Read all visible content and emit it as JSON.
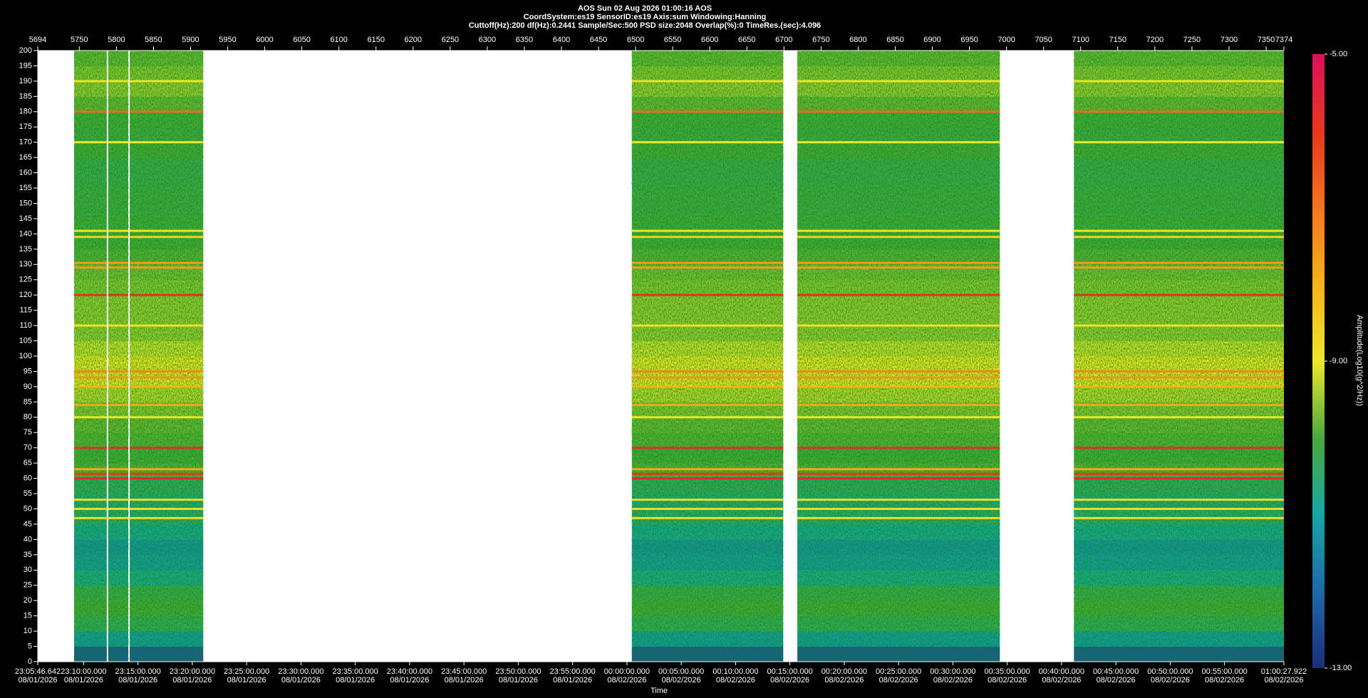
{
  "chart_data": {
    "type": "spectrogram",
    "title": "AOS  Sun 02 Aug 2026 01:00:16  AOS",
    "subtitle": "CoordSystem:es19   SensorID:es19   Axis:sum   Windowing:Hanning",
    "info": "Cuttoff(Hz):200      df(Hz):0.2441      Sample/Sec:500      PSD size:2048      Overlap(%):0      TimeRes.(sec):4.096",
    "x_label": "Time",
    "colorbar_label": "Amplitude(Log10(g^2/Hz))",
    "xlim": [
      5694,
      7374
    ],
    "xticks": [
      5694,
      5750,
      5800,
      5850,
      5900,
      5950,
      6000,
      6050,
      6100,
      6150,
      6200,
      6250,
      6300,
      6350,
      6400,
      6450,
      6500,
      6550,
      6600,
      6650,
      6700,
      6750,
      6800,
      6850,
      6900,
      6950,
      7000,
      7050,
      7100,
      7150,
      7200,
      7250,
      7300,
      7350,
      7374
    ],
    "ylim": [
      0,
      200
    ],
    "yticks": [
      0,
      5,
      10,
      15,
      20,
      25,
      30,
      35,
      40,
      45,
      50,
      55,
      60,
      65,
      70,
      75,
      80,
      85,
      90,
      95,
      100,
      105,
      110,
      115,
      120,
      125,
      130,
      135,
      140,
      145,
      150,
      155,
      160,
      165,
      170,
      175,
      180,
      185,
      190,
      195,
      200
    ],
    "time_ticks": [
      {
        "value": 5694,
        "label": "23:05:46.642",
        "date": "08/01/2026"
      },
      {
        "value": 5755.86,
        "label": "23:10:00.000",
        "date": "08/01/2026"
      },
      {
        "value": 5829.1,
        "label": "23:15:00.000",
        "date": "08/01/2026"
      },
      {
        "value": 5902.34,
        "label": "23:20:00.000",
        "date": "08/01/2026"
      },
      {
        "value": 5975.58,
        "label": "23:25:00.000",
        "date": "08/01/2026"
      },
      {
        "value": 6048.83,
        "label": "23:30:00.000",
        "date": "08/01/2026"
      },
      {
        "value": 6122.07,
        "label": "23:35:00.000",
        "date": "08/01/2026"
      },
      {
        "value": 6195.31,
        "label": "23:40:00.000",
        "date": "08/01/2026"
      },
      {
        "value": 6268.55,
        "label": "23:45:00.000",
        "date": "08/01/2026"
      },
      {
        "value": 6341.8,
        "label": "23:50:00.000",
        "date": "08/01/2026"
      },
      {
        "value": 6415.04,
        "label": "23:55:00.000",
        "date": "08/01/2026"
      },
      {
        "value": 6488.28,
        "label": "00:00:00.000",
        "date": "08/02/2026"
      },
      {
        "value": 6561.52,
        "label": "00:05:00.000",
        "date": "08/02/2026"
      },
      {
        "value": 6634.77,
        "label": "00:10:00.000",
        "date": "08/02/2026"
      },
      {
        "value": 6708.01,
        "label": "00:15:00.000",
        "date": "08/02/2026"
      },
      {
        "value": 6781.25,
        "label": "00:20:00.000",
        "date": "08/02/2026"
      },
      {
        "value": 6854.49,
        "label": "00:25:00.000",
        "date": "08/02/2026"
      },
      {
        "value": 6927.73,
        "label": "00:30:00.000",
        "date": "08/02/2026"
      },
      {
        "value": 7000.98,
        "label": "00:35:00.000",
        "date": "08/02/2026"
      },
      {
        "value": 7074.22,
        "label": "00:40:00.000",
        "date": "08/02/2026"
      },
      {
        "value": 7147.46,
        "label": "00:45:00.000",
        "date": "08/02/2026"
      },
      {
        "value": 7220.7,
        "label": "00:50:00.000",
        "date": "08/02/2026"
      },
      {
        "value": 7293.95,
        "label": "00:55:00.000",
        "date": "08/02/2026"
      },
      {
        "value": 7374,
        "label": "01:00:27.922",
        "date": "08/02/2026"
      }
    ],
    "clim": [
      -13,
      -5
    ],
    "cticks": [
      {
        "value": -5,
        "label": "-5.00"
      },
      {
        "value": -9,
        "label": "-9.00"
      },
      {
        "value": -13,
        "label": "-13.00"
      }
    ],
    "colorscale": [
      "#1c2f7a",
      "#1d69a8",
      "#18a5a5",
      "#4aa93e",
      "#ece72c",
      "#f7b21a",
      "#f3751f",
      "#e8361e",
      "#dc0f5c"
    ],
    "segments": [
      [
        5743,
        5787
      ],
      [
        5789,
        5816
      ],
      [
        5818,
        5917
      ],
      [
        6495,
        6699
      ],
      [
        6718,
        6991
      ],
      [
        7091,
        7374
      ]
    ],
    "band_edges": [
      0,
      5,
      10,
      15,
      20,
      25,
      30,
      35,
      40,
      45,
      50,
      55,
      60,
      65,
      70,
      75,
      80,
      85,
      90,
      95,
      100,
      105,
      110,
      115,
      120,
      125,
      130,
      135,
      140,
      145,
      150,
      155,
      160,
      165,
      170,
      175,
      180,
      185,
      190,
      195,
      200
    ],
    "band_levels": [
      -12.3,
      -11.2,
      -10.3,
      -10.0,
      -10.2,
      -10.8,
      -11.2,
      -11.3,
      -10.9,
      -10.5,
      -10.6,
      -10.4,
      -9.9,
      -10.0,
      -9.9,
      -9.8,
      -9.6,
      -9.3,
      -8.9,
      -8.9,
      -9.2,
      -9.5,
      -9.5,
      -9.5,
      -9.6,
      -9.7,
      -9.9,
      -10.0,
      -10.0,
      -10.1,
      -10.1,
      -10.2,
      -10.2,
      -10.0,
      -10.1,
      -10.0,
      -9.8,
      -9.5,
      -9.6,
      -9.8
    ],
    "lines": {
      "frequencies": [
        47,
        50,
        53,
        60,
        61.5,
        63,
        70,
        80,
        84,
        90,
        93,
        95,
        110,
        120,
        129,
        130.5,
        139,
        141,
        170,
        180,
        190
      ],
      "levels": [
        -8.8,
        -8.8,
        -8.8,
        -5.6,
        -6.0,
        -7.8,
        -5.8,
        -9.0,
        -7.8,
        -8.0,
        -7.5,
        -7.3,
        -8.9,
        -5.8,
        -7.6,
        -7.6,
        -8.6,
        -8.9,
        -9.0,
        -6.8,
        -8.9
      ]
    }
  }
}
